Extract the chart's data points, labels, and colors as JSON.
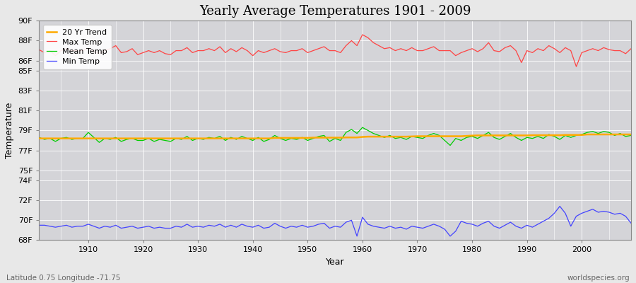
{
  "title": "Yearly Average Temperatures 1901 - 2009",
  "xlabel": "Year",
  "ylabel": "Temperature",
  "subtitle_lat_lon": "Latitude 0.75 Longitude -71.75",
  "watermark": "worldspecies.org",
  "years": [
    1901,
    1902,
    1903,
    1904,
    1905,
    1906,
    1907,
    1908,
    1909,
    1910,
    1911,
    1912,
    1913,
    1914,
    1915,
    1916,
    1917,
    1918,
    1919,
    1920,
    1921,
    1922,
    1923,
    1924,
    1925,
    1926,
    1927,
    1928,
    1929,
    1930,
    1931,
    1932,
    1933,
    1934,
    1935,
    1936,
    1937,
    1938,
    1939,
    1940,
    1941,
    1942,
    1943,
    1944,
    1945,
    1946,
    1947,
    1948,
    1949,
    1950,
    1951,
    1952,
    1953,
    1954,
    1955,
    1956,
    1957,
    1958,
    1959,
    1960,
    1961,
    1962,
    1963,
    1964,
    1965,
    1966,
    1967,
    1968,
    1969,
    1970,
    1971,
    1972,
    1973,
    1974,
    1975,
    1976,
    1977,
    1978,
    1979,
    1980,
    1981,
    1982,
    1983,
    1984,
    1985,
    1986,
    1987,
    1988,
    1989,
    1990,
    1991,
    1992,
    1993,
    1994,
    1995,
    1996,
    1997,
    1998,
    1999,
    2000,
    2001,
    2002,
    2003,
    2004,
    2005,
    2006,
    2007,
    2008,
    2009
  ],
  "max_temp": [
    87.1,
    86.8,
    87.0,
    86.5,
    87.0,
    87.2,
    87.0,
    87.0,
    87.0,
    87.3,
    86.9,
    86.7,
    87.0,
    87.2,
    87.5,
    86.8,
    86.9,
    87.2,
    86.6,
    86.8,
    87.0,
    86.8,
    87.0,
    86.7,
    86.6,
    87.0,
    87.0,
    87.3,
    86.8,
    87.0,
    87.0,
    87.2,
    87.0,
    87.4,
    86.8,
    87.2,
    86.9,
    87.3,
    87.0,
    86.5,
    87.0,
    86.8,
    87.0,
    87.2,
    86.9,
    86.8,
    87.0,
    87.0,
    87.2,
    86.8,
    87.0,
    87.2,
    87.4,
    87.0,
    87.0,
    86.8,
    87.5,
    88.0,
    87.5,
    88.6,
    88.3,
    87.8,
    87.5,
    87.2,
    87.3,
    87.0,
    87.2,
    87.0,
    87.3,
    87.0,
    87.0,
    87.2,
    87.4,
    87.0,
    87.0,
    87.0,
    86.5,
    86.8,
    87.0,
    87.2,
    86.9,
    87.2,
    87.8,
    87.0,
    86.9,
    87.3,
    87.5,
    87.0,
    85.8,
    87.0,
    86.8,
    87.2,
    87.0,
    87.5,
    87.2,
    86.8,
    87.3,
    87.0,
    85.4,
    86.8,
    87.0,
    87.2,
    87.0,
    87.3,
    87.1,
    87.0,
    87.0,
    86.7,
    87.2
  ],
  "mean_temp": [
    78.3,
    78.1,
    78.2,
    77.9,
    78.2,
    78.3,
    78.1,
    78.2,
    78.2,
    78.8,
    78.3,
    77.8,
    78.2,
    78.1,
    78.3,
    77.9,
    78.1,
    78.2,
    78.0,
    78.0,
    78.2,
    77.9,
    78.1,
    78.0,
    77.9,
    78.2,
    78.1,
    78.4,
    78.0,
    78.2,
    78.1,
    78.3,
    78.2,
    78.4,
    78.0,
    78.3,
    78.1,
    78.4,
    78.2,
    78.0,
    78.3,
    77.9,
    78.1,
    78.5,
    78.2,
    78.0,
    78.2,
    78.1,
    78.3,
    78.0,
    78.2,
    78.4,
    78.5,
    77.9,
    78.2,
    78.0,
    78.8,
    79.1,
    78.7,
    79.3,
    79.0,
    78.7,
    78.5,
    78.3,
    78.5,
    78.2,
    78.3,
    78.1,
    78.4,
    78.3,
    78.2,
    78.5,
    78.7,
    78.5,
    78.0,
    77.5,
    78.2,
    78.0,
    78.3,
    78.4,
    78.2,
    78.5,
    78.8,
    78.3,
    78.1,
    78.4,
    78.7,
    78.3,
    78.0,
    78.3,
    78.2,
    78.4,
    78.2,
    78.6,
    78.4,
    78.1,
    78.5,
    78.3,
    78.5,
    78.6,
    78.8,
    78.9,
    78.7,
    78.9,
    78.8,
    78.5,
    78.7,
    78.4,
    78.5
  ],
  "min_temp": [
    69.5,
    69.5,
    69.4,
    69.3,
    69.4,
    69.5,
    69.3,
    69.4,
    69.4,
    69.6,
    69.4,
    69.2,
    69.4,
    69.3,
    69.5,
    69.2,
    69.3,
    69.4,
    69.2,
    69.3,
    69.4,
    69.2,
    69.3,
    69.2,
    69.2,
    69.4,
    69.3,
    69.6,
    69.3,
    69.4,
    69.3,
    69.5,
    69.4,
    69.6,
    69.3,
    69.5,
    69.3,
    69.6,
    69.4,
    69.3,
    69.5,
    69.2,
    69.3,
    69.7,
    69.4,
    69.2,
    69.4,
    69.3,
    69.5,
    69.3,
    69.4,
    69.6,
    69.7,
    69.2,
    69.4,
    69.3,
    69.8,
    70.0,
    68.4,
    70.3,
    69.6,
    69.4,
    69.3,
    69.2,
    69.4,
    69.2,
    69.3,
    69.1,
    69.4,
    69.3,
    69.2,
    69.4,
    69.6,
    69.4,
    69.1,
    68.4,
    68.9,
    69.9,
    69.7,
    69.6,
    69.4,
    69.7,
    69.9,
    69.4,
    69.2,
    69.5,
    69.8,
    69.4,
    69.2,
    69.5,
    69.3,
    69.6,
    69.9,
    70.2,
    70.7,
    71.4,
    70.7,
    69.4,
    70.4,
    70.7,
    70.9,
    71.1,
    70.8,
    70.9,
    70.8,
    70.6,
    70.7,
    70.4,
    69.7
  ],
  "trend": [
    78.2,
    78.2,
    78.2,
    78.2,
    78.2,
    78.2,
    78.2,
    78.2,
    78.2,
    78.2,
    78.2,
    78.2,
    78.2,
    78.2,
    78.2,
    78.2,
    78.2,
    78.2,
    78.2,
    78.2,
    78.2,
    78.2,
    78.2,
    78.2,
    78.2,
    78.2,
    78.2,
    78.2,
    78.2,
    78.2,
    78.2,
    78.2,
    78.2,
    78.2,
    78.2,
    78.2,
    78.2,
    78.2,
    78.2,
    78.2,
    78.2,
    78.2,
    78.2,
    78.25,
    78.25,
    78.25,
    78.25,
    78.25,
    78.25,
    78.25,
    78.28,
    78.28,
    78.28,
    78.28,
    78.28,
    78.28,
    78.3,
    78.3,
    78.3,
    78.35,
    78.38,
    78.38,
    78.38,
    78.38,
    78.38,
    78.38,
    78.38,
    78.38,
    78.4,
    78.42,
    78.42,
    78.42,
    78.42,
    78.42,
    78.42,
    78.42,
    78.42,
    78.42,
    78.45,
    78.48,
    78.5,
    78.5,
    78.5,
    78.5,
    78.5,
    78.5,
    78.5,
    78.5,
    78.5,
    78.5,
    78.52,
    78.52,
    78.52,
    78.52,
    78.52,
    78.52,
    78.55,
    78.55,
    78.55,
    78.55,
    78.6,
    78.6,
    78.6,
    78.6,
    78.6,
    78.6,
    78.6,
    78.6,
    78.6
  ],
  "max_color": "#ff4444",
  "mean_color": "#00cc00",
  "min_color": "#4444ff",
  "trend_color": "#ffaa00",
  "bg_color": "#e8e8e8",
  "plot_bg_color": "#d4d4d8",
  "grid_color": "#ffffff",
  "ylim_min": 68,
  "ylim_max": 90,
  "ytick_vals": [
    68,
    70,
    72,
    74,
    75,
    77,
    79,
    81,
    83,
    85,
    86,
    88,
    90
  ],
  "ytick_labels": [
    "68F",
    "70F",
    "72F",
    "74F",
    "75F",
    "77F",
    "79F",
    "81F",
    "83F",
    "85F",
    "86F",
    "88F",
    "90F"
  ],
  "xlim_min": 1901,
  "xlim_max": 2009,
  "xticks": [
    1910,
    1920,
    1930,
    1940,
    1950,
    1960,
    1970,
    1980,
    1990,
    2000
  ]
}
